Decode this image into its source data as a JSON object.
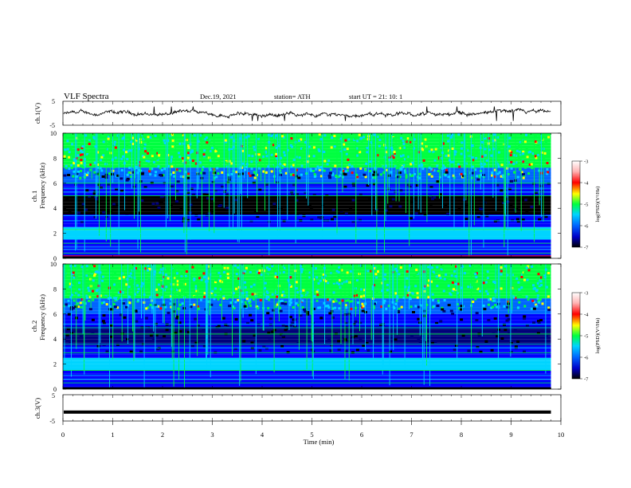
{
  "header": {
    "title": "VLF  Spectra",
    "date": "Dec.19, 2021",
    "station": "station= ATH",
    "start": "start  UT  =   21: 10: 1"
  },
  "colors": {
    "dark": "#000000",
    "navy": "#00007a",
    "blue": "#0000ff",
    "mid_blue": "#0064ff",
    "cyan": "#00d4ff",
    "green": "#00ff40",
    "yellow": "#ffff00",
    "red": "#ff0000",
    "pink": "#ffb4b4"
  },
  "chart_data": [
    {
      "type": "line",
      "id": "ch1_waveform",
      "ylabel": "ch.1(V)",
      "ylim": [
        -5,
        5
      ],
      "yticks": [
        "5",
        "-5"
      ],
      "xlim": [
        0,
        10
      ],
      "baseline_v": -0.3
    },
    {
      "type": "heatmap",
      "id": "ch1_spectrogram",
      "ylabel_top": "ch.1",
      "ylabel": "Frequency  (kHz)",
      "ylim": [
        0,
        10
      ],
      "yticks": [
        "0",
        "2",
        "4",
        "6",
        "8",
        "10"
      ],
      "xlim": [
        0,
        9.8
      ],
      "colorbar": {
        "label": "log(PSD)(V²/Hz)",
        "range": [
          -7,
          -3
        ],
        "ticks": [
          "-3",
          "-4",
          "-5",
          "-6",
          "-7"
        ]
      }
    },
    {
      "type": "heatmap",
      "id": "ch2_spectrogram",
      "ylabel_top": "ch.2",
      "ylabel": "Frequency  (kHz)",
      "ylim": [
        0,
        10
      ],
      "yticks": [
        "0",
        "2",
        "4",
        "6",
        "8",
        "10"
      ],
      "xlim": [
        0,
        9.8
      ],
      "colorbar": {
        "label": "log(PSD)(V²/Hz)",
        "range": [
          -7,
          -3
        ],
        "ticks": [
          "-3",
          "-4",
          "-5",
          "-6",
          "-7"
        ]
      }
    },
    {
      "type": "line",
      "id": "ch3_waveform",
      "ylabel": "ch.3(V)",
      "ylim": [
        -5,
        5
      ],
      "yticks": [
        "5",
        "-5"
      ],
      "xlim": [
        0,
        10
      ],
      "baseline_v": -1.6
    }
  ],
  "xaxis": {
    "label": "Time  (min)",
    "ticks": [
      "0",
      "1",
      "2",
      "3",
      "4",
      "5",
      "6",
      "7",
      "8",
      "9",
      "10"
    ],
    "range": [
      0,
      10
    ]
  }
}
